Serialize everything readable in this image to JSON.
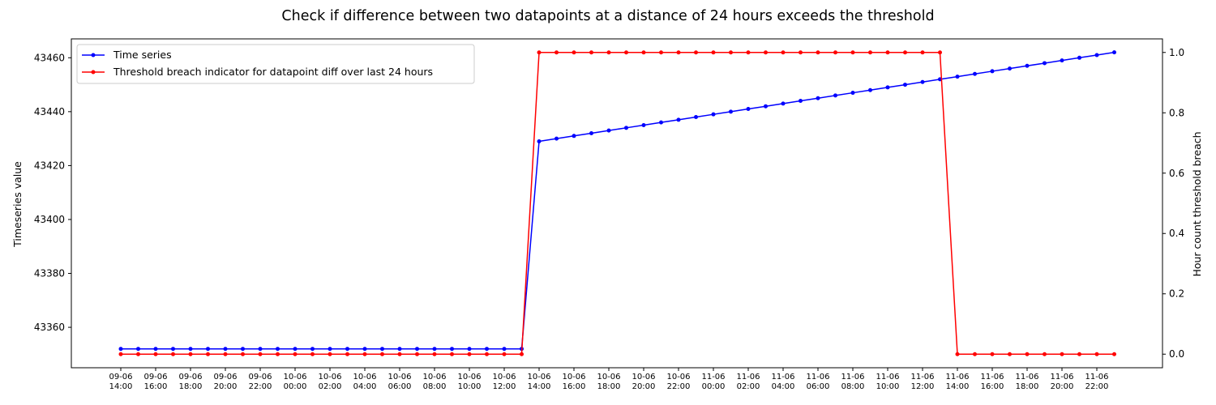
{
  "chart_data": {
    "type": "line",
    "title": "Check if difference between two datapoints at a distance of 24 hours exceeds the threshold",
    "xlabel": "",
    "ylabel": "Timeseries value",
    "y2label": "Hour count threshold breach",
    "ylim": [
      43345,
      43467
    ],
    "y2lim": [
      -0.045,
      1.045
    ],
    "yticks": [
      43360,
      43380,
      43400,
      43420,
      43440,
      43460
    ],
    "y2ticks": [
      "0.0",
      "0.2",
      "0.4",
      "0.6",
      "0.8",
      "1.0"
    ],
    "y2tick_values": [
      0,
      0.2,
      0.4,
      0.6,
      0.8,
      1.0
    ],
    "legend_position": "top-left",
    "grid": false,
    "x_start": "09-06 14:00",
    "x_end": "11-06 23:00",
    "x_step": "1 hour",
    "xtick_labels": [
      [
        "09-06",
        "14:00"
      ],
      [
        "09-06",
        "16:00"
      ],
      [
        "09-06",
        "18:00"
      ],
      [
        "09-06",
        "20:00"
      ],
      [
        "09-06",
        "22:00"
      ],
      [
        "10-06",
        "00:00"
      ],
      [
        "10-06",
        "02:00"
      ],
      [
        "10-06",
        "04:00"
      ],
      [
        "10-06",
        "06:00"
      ],
      [
        "10-06",
        "08:00"
      ],
      [
        "10-06",
        "10:00"
      ],
      [
        "10-06",
        "12:00"
      ],
      [
        "10-06",
        "14:00"
      ],
      [
        "10-06",
        "16:00"
      ],
      [
        "10-06",
        "18:00"
      ],
      [
        "10-06",
        "20:00"
      ],
      [
        "10-06",
        "22:00"
      ],
      [
        "11-06",
        "00:00"
      ],
      [
        "11-06",
        "02:00"
      ],
      [
        "11-06",
        "04:00"
      ],
      [
        "11-06",
        "06:00"
      ],
      [
        "11-06",
        "08:00"
      ],
      [
        "11-06",
        "10:00"
      ],
      [
        "11-06",
        "12:00"
      ],
      [
        "11-06",
        "14:00"
      ],
      [
        "11-06",
        "16:00"
      ],
      [
        "11-06",
        "18:00"
      ],
      [
        "11-06",
        "20:00"
      ],
      [
        "11-06",
        "22:00"
      ]
    ],
    "series": [
      {
        "name": "Time series",
        "axis": "left",
        "color": "#0000ff",
        "values": [
          43352,
          43352,
          43352,
          43352,
          43352,
          43352,
          43352,
          43352,
          43352,
          43352,
          43352,
          43352,
          43352,
          43352,
          43352,
          43352,
          43352,
          43352,
          43352,
          43352,
          43352,
          43352,
          43352,
          43352,
          43429,
          43430,
          43431,
          43432,
          43433,
          43434,
          43435,
          43436,
          43437,
          43438,
          43439,
          43440,
          43441,
          43442,
          43443,
          43444,
          43445,
          43446,
          43447,
          43448,
          43449,
          43450,
          43451,
          43452,
          43453,
          43454,
          43455,
          43456,
          43457,
          43458,
          43459,
          43460,
          43461,
          43462
        ]
      },
      {
        "name": "Threshold breach indicator for datapoint diff over last 24 hours",
        "axis": "right",
        "color": "#ff0000",
        "values": [
          0,
          0,
          0,
          0,
          0,
          0,
          0,
          0,
          0,
          0,
          0,
          0,
          0,
          0,
          0,
          0,
          0,
          0,
          0,
          0,
          0,
          0,
          0,
          0,
          1,
          1,
          1,
          1,
          1,
          1,
          1,
          1,
          1,
          1,
          1,
          1,
          1,
          1,
          1,
          1,
          1,
          1,
          1,
          1,
          1,
          1,
          1,
          1,
          0,
          0,
          0,
          0,
          0,
          0,
          0,
          0,
          0,
          0
        ]
      }
    ]
  }
}
